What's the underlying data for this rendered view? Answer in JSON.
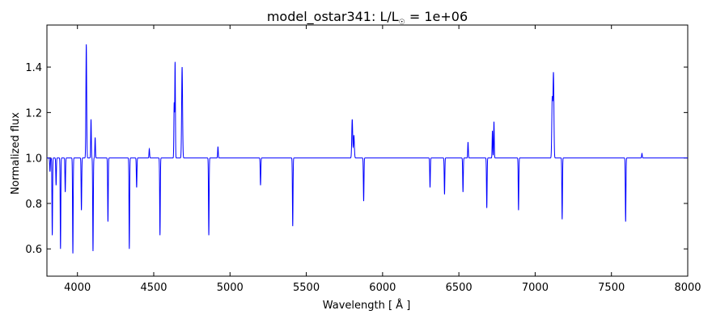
{
  "chart_data": {
    "type": "line",
    "title": "model_ostar341: L/L",
    "title_subscript": "☉",
    "title_suffix": " = 1e+06",
    "xlabel": "Wavelength [ Å ]",
    "ylabel": "Normalized flux",
    "xlim": [
      3800,
      8000
    ],
    "ylim": [
      0.48,
      1.585
    ],
    "xticks": [
      4000,
      4500,
      5000,
      5500,
      6000,
      6500,
      7000,
      7500,
      8000
    ],
    "xtick_labels": [
      "4000",
      "4500",
      "5000",
      "5500",
      "6000",
      "6500",
      "7000",
      "7500",
      "8000"
    ],
    "yticks": [
      0.6,
      0.8,
      1.0,
      1.2,
      1.4
    ],
    "ytick_labels": [
      "0.6",
      "0.8",
      "1.0",
      "1.2",
      "1.4"
    ],
    "grid": false,
    "line_color": "#0000ff",
    "continuum": 1.0,
    "series": [
      {
        "features": [
          {
            "center": 3820,
            "depth": -0.06,
            "width": 2
          },
          {
            "center": 3835,
            "depth": -0.34,
            "width": 2
          },
          {
            "center": 3860,
            "depth": -0.12,
            "width": 2
          },
          {
            "center": 3889,
            "depth": -0.4,
            "width": 2
          },
          {
            "center": 3920,
            "depth": -0.15,
            "width": 2
          },
          {
            "center": 3970,
            "depth": -0.42,
            "width": 2
          },
          {
            "center": 4026,
            "depth": -0.23,
            "width": 2
          },
          {
            "center": 4058,
            "depth": 0.5,
            "width": 2.5
          },
          {
            "center": 4089,
            "depth": 0.17,
            "width": 2
          },
          {
            "center": 4102,
            "depth": -0.41,
            "width": 2
          },
          {
            "center": 4116,
            "depth": 0.09,
            "width": 2
          },
          {
            "center": 4200,
            "depth": -0.28,
            "width": 2
          },
          {
            "center": 4340,
            "depth": -0.4,
            "width": 2
          },
          {
            "center": 4388,
            "depth": -0.13,
            "width": 2
          },
          {
            "center": 4471,
            "depth": 0.04,
            "width": 2
          },
          {
            "center": 4541,
            "depth": -0.34,
            "width": 2
          },
          {
            "center": 4634,
            "depth": 0.24,
            "width": 2
          },
          {
            "center": 4640,
            "depth": 0.42,
            "width": 2
          },
          {
            "center": 4686,
            "depth": 0.4,
            "width": 3
          },
          {
            "center": 4861,
            "depth": -0.34,
            "width": 2
          },
          {
            "center": 4921,
            "depth": 0.05,
            "width": 2
          },
          {
            "center": 5200,
            "depth": -0.12,
            "width": 2
          },
          {
            "center": 5411,
            "depth": -0.3,
            "width": 2
          },
          {
            "center": 5801,
            "depth": 0.17,
            "width": 3
          },
          {
            "center": 5812,
            "depth": 0.1,
            "width": 3
          },
          {
            "center": 5876,
            "depth": -0.19,
            "width": 2
          },
          {
            "center": 6311,
            "depth": -0.13,
            "width": 2
          },
          {
            "center": 6406,
            "depth": -0.16,
            "width": 2
          },
          {
            "center": 6527,
            "depth": -0.15,
            "width": 2
          },
          {
            "center": 6560,
            "depth": 0.07,
            "width": 2
          },
          {
            "center": 6683,
            "depth": -0.22,
            "width": 2
          },
          {
            "center": 6720,
            "depth": 0.12,
            "width": 2
          },
          {
            "center": 6730,
            "depth": 0.16,
            "width": 2
          },
          {
            "center": 6891,
            "depth": -0.23,
            "width": 2
          },
          {
            "center": 7112,
            "depth": 0.26,
            "width": 3
          },
          {
            "center": 7120,
            "depth": 0.37,
            "width": 3
          },
          {
            "center": 7177,
            "depth": -0.27,
            "width": 2
          },
          {
            "center": 7593,
            "depth": -0.28,
            "width": 2
          },
          {
            "center": 7700,
            "depth": 0.02,
            "width": 2
          }
        ]
      }
    ]
  }
}
